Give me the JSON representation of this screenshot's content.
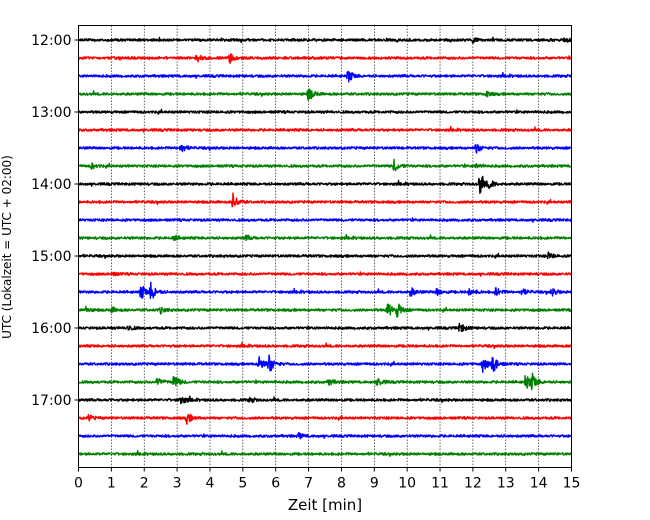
{
  "chart_data": {
    "type": "line",
    "title": "",
    "xlabel": "Zeit  [min]",
    "ylabel": "UTC (Lokalzeit = UTC + 02:00)",
    "xlim": [
      0,
      15
    ],
    "x_ticks": [
      "0",
      "1",
      "2",
      "3",
      "4",
      "5",
      "6",
      "7",
      "8",
      "9",
      "10",
      "11",
      "12",
      "13",
      "14",
      "15"
    ],
    "y_tick_labels": [
      "12:00",
      "13:00",
      "14:00",
      "15:00",
      "16:00",
      "17:00"
    ],
    "grid_x": true,
    "trace_colors": [
      "#000000",
      "#ff0000",
      "#0000ff",
      "#008000"
    ],
    "traces": [
      {
        "time": "12:00",
        "events": [
          {
            "t": 12.0,
            "amp": 0.25
          },
          {
            "t": 14.8,
            "amp": 0.2
          }
        ]
      },
      {
        "time": "12:15",
        "events": [
          {
            "t": 3.6,
            "amp": 0.45
          },
          {
            "t": 4.6,
            "amp": 0.5
          }
        ]
      },
      {
        "time": "12:30",
        "events": [
          {
            "t": 8.2,
            "amp": 0.7
          }
        ]
      },
      {
        "time": "12:45",
        "events": [
          {
            "t": 7.0,
            "amp": 0.8
          },
          {
            "t": 12.4,
            "amp": 0.3
          }
        ]
      },
      {
        "time": "13:00",
        "events": []
      },
      {
        "time": "13:15",
        "events": []
      },
      {
        "time": "13:30",
        "events": [
          {
            "t": 3.1,
            "amp": 0.6
          },
          {
            "t": 12.1,
            "amp": 0.5
          }
        ]
      },
      {
        "time": "13:45",
        "events": [
          {
            "t": 0.4,
            "amp": 0.3
          },
          {
            "t": 9.6,
            "amp": 0.65
          },
          {
            "t": 12.1,
            "amp": 0.25
          }
        ]
      },
      {
        "time": "14:00",
        "events": [
          {
            "t": 12.2,
            "amp": 1.2
          },
          {
            "t": 12.5,
            "amp": 0.4
          }
        ]
      },
      {
        "time": "14:15",
        "events": [
          {
            "t": 4.7,
            "amp": 0.9
          }
        ]
      },
      {
        "time": "14:30",
        "events": []
      },
      {
        "time": "14:45",
        "events": [
          {
            "t": 2.9,
            "amp": 0.3
          },
          {
            "t": 5.1,
            "amp": 0.25
          }
        ]
      },
      {
        "time": "15:00",
        "events": [
          {
            "t": 14.3,
            "amp": 0.35
          }
        ]
      },
      {
        "time": "15:15",
        "events": [
          {
            "t": 1.0,
            "amp": 0.2
          }
        ]
      },
      {
        "time": "15:30",
        "events": [
          {
            "t": 1.9,
            "amp": 0.9
          },
          {
            "t": 2.2,
            "amp": 1.0
          },
          {
            "t": 10.1,
            "amp": 0.5
          },
          {
            "t": 10.9,
            "amp": 0.4
          },
          {
            "t": 11.9,
            "amp": 0.45
          },
          {
            "t": 12.7,
            "amp": 0.45
          },
          {
            "t": 13.5,
            "amp": 0.4
          },
          {
            "t": 14.4,
            "amp": 0.4
          }
        ]
      },
      {
        "time": "15:45",
        "events": [
          {
            "t": 0.2,
            "amp": 0.35
          },
          {
            "t": 1.0,
            "amp": 0.3
          },
          {
            "t": 2.5,
            "amp": 0.3
          },
          {
            "t": 9.4,
            "amp": 0.9
          },
          {
            "t": 9.7,
            "amp": 0.8
          }
        ]
      },
      {
        "time": "16:00",
        "events": [
          {
            "t": 1.5,
            "amp": 0.3
          },
          {
            "t": 11.6,
            "amp": 0.6
          }
        ]
      },
      {
        "time": "16:15",
        "events": []
      },
      {
        "time": "16:30",
        "events": [
          {
            "t": 5.5,
            "amp": 0.9
          },
          {
            "t": 5.8,
            "amp": 1.0
          },
          {
            "t": 12.3,
            "amp": 0.8
          },
          {
            "t": 12.6,
            "amp": 1.0
          }
        ]
      },
      {
        "time": "16:45",
        "events": [
          {
            "t": 2.4,
            "amp": 0.5
          },
          {
            "t": 2.9,
            "amp": 0.8
          },
          {
            "t": 7.6,
            "amp": 0.4
          },
          {
            "t": 9.1,
            "amp": 0.45
          },
          {
            "t": 13.6,
            "amp": 0.9
          },
          {
            "t": 13.8,
            "amp": 0.8
          }
        ]
      },
      {
        "time": "17:00",
        "events": [
          {
            "t": 3.1,
            "amp": 0.6
          },
          {
            "t": 5.2,
            "amp": 0.3
          }
        ]
      },
      {
        "time": "17:15",
        "events": [
          {
            "t": 0.3,
            "amp": 0.3
          },
          {
            "t": 3.3,
            "amp": 0.6
          }
        ]
      },
      {
        "time": "17:30",
        "events": [
          {
            "t": 6.7,
            "amp": 0.3
          }
        ]
      },
      {
        "time": "17:45",
        "events": []
      }
    ]
  }
}
